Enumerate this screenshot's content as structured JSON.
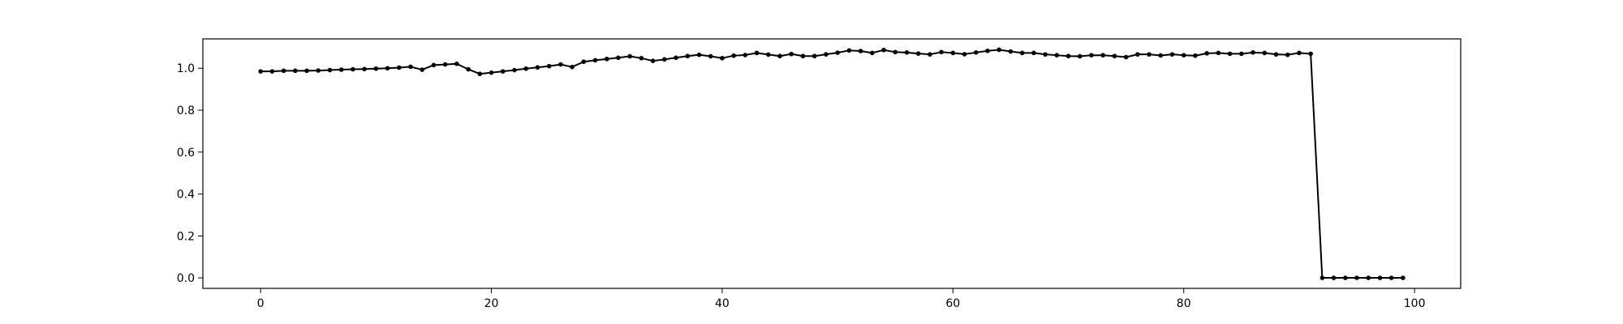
{
  "chart_data": {
    "type": "line",
    "title": "",
    "xlabel": "",
    "ylabel": "",
    "xlim": [
      -5,
      104
    ],
    "ylim": [
      -0.05,
      1.14
    ],
    "grid": false,
    "x_ticks": [
      0,
      20,
      40,
      60,
      80,
      100
    ],
    "x_tick_labels": [
      "0",
      "20",
      "40",
      "60",
      "80",
      "100"
    ],
    "y_ticks": [
      0.0,
      0.2,
      0.4,
      0.6,
      0.8,
      1.0
    ],
    "y_tick_labels": [
      "0.0",
      "0.2",
      "0.4",
      "0.6",
      "0.8",
      "1.0"
    ],
    "series": [
      {
        "color": "#000000",
        "marker": "circle",
        "x": [
          0,
          1,
          2,
          3,
          4,
          5,
          6,
          7,
          8,
          9,
          10,
          11,
          12,
          13,
          14,
          15,
          16,
          17,
          18,
          19,
          20,
          21,
          22,
          23,
          24,
          25,
          26,
          27,
          28,
          29,
          30,
          31,
          32,
          33,
          34,
          35,
          36,
          37,
          38,
          39,
          40,
          41,
          42,
          43,
          44,
          45,
          46,
          47,
          48,
          49,
          50,
          51,
          52,
          53,
          54,
          55,
          56,
          57,
          58,
          59,
          60,
          61,
          62,
          63,
          64,
          65,
          66,
          67,
          68,
          69,
          70,
          71,
          72,
          73,
          74,
          75,
          76,
          77,
          78,
          79,
          80,
          81,
          82,
          83,
          84,
          85,
          86,
          87,
          88,
          89,
          90,
          91,
          92,
          93,
          94,
          95,
          96,
          97,
          98,
          99
        ],
        "values": [
          0.985,
          0.985,
          0.988,
          0.988,
          0.988,
          0.989,
          0.991,
          0.993,
          0.995,
          0.996,
          0.998,
          1.0,
          1.003,
          1.007,
          0.993,
          1.015,
          1.018,
          1.021,
          0.995,
          0.973,
          0.979,
          0.985,
          0.991,
          0.998,
          1.004,
          1.01,
          1.018,
          1.006,
          1.031,
          1.038,
          1.044,
          1.05,
          1.057,
          1.048,
          1.035,
          1.042,
          1.05,
          1.058,
          1.064,
          1.057,
          1.048,
          1.06,
          1.063,
          1.073,
          1.065,
          1.058,
          1.068,
          1.058,
          1.058,
          1.066,
          1.074,
          1.085,
          1.082,
          1.073,
          1.087,
          1.077,
          1.075,
          1.07,
          1.066,
          1.077,
          1.073,
          1.067,
          1.075,
          1.083,
          1.088,
          1.08,
          1.073,
          1.073,
          1.066,
          1.062,
          1.058,
          1.057,
          1.062,
          1.062,
          1.058,
          1.053,
          1.066,
          1.066,
          1.061,
          1.066,
          1.062,
          1.06,
          1.071,
          1.073,
          1.069,
          1.069,
          1.075,
          1.073,
          1.066,
          1.064,
          1.073,
          1.069,
          0.0,
          0.0,
          0.0,
          0.0,
          0.0,
          0.0,
          0.0,
          0.0
        ]
      }
    ]
  }
}
